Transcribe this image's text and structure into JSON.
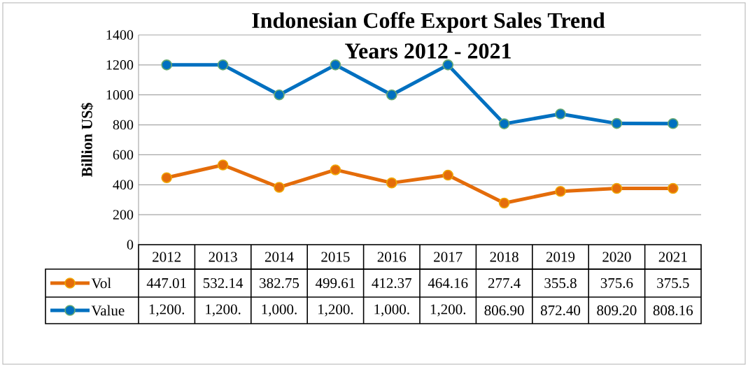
{
  "chart_data": {
    "type": "line",
    "title": "Indonesian Coffe Export  Sales Trend",
    "subtitle": "Years 2012 - 2021",
    "ylabel": "Billion  US$",
    "categories": [
      "2012",
      "2013",
      "2014",
      "2015",
      "2016",
      "2017",
      "2018",
      "2019",
      "2020",
      "2021"
    ],
    "series": [
      {
        "name": "Vol",
        "color": "#e46c0a",
        "values": [
          447.01,
          532.14,
          382.75,
          499.61,
          412.37,
          464.16,
          277.4,
          355.8,
          375.6,
          375.5
        ],
        "value_labels": [
          "447.01",
          "532.14",
          "382.75",
          "499.61",
          "412.37",
          "464.16",
          "277.4",
          "355.8",
          "375.6",
          "375.5"
        ]
      },
      {
        "name": "Value",
        "color": "#0070c0",
        "values": [
          1200,
          1200,
          1000,
          1200,
          1000,
          1200,
          806.9,
          872.4,
          809.2,
          808.16
        ],
        "value_labels": [
          "1,200.",
          "1,200.",
          "1,000.",
          "1,200.",
          "1,000.",
          "1,200.",
          "806.90",
          "872.40",
          "809.20",
          "808.16"
        ]
      }
    ],
    "ylim": [
      0,
      1400
    ],
    "yticks": [
      0,
      200,
      400,
      600,
      800,
      1000,
      1200,
      1400
    ],
    "grid": "y",
    "legend": "bottom",
    "marker": "circle",
    "line_style": "solid"
  }
}
